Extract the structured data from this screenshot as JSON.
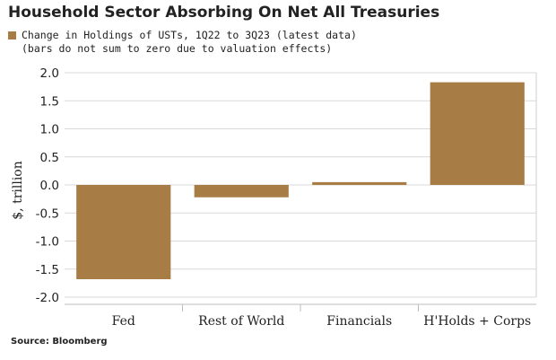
{
  "chart_data": {
    "type": "bar",
    "title": "Household Sector Absorbing On Net All Treasuries",
    "legend": {
      "series_label": "Change in Holdings of USTs, 1Q22 to 3Q23 (latest data)",
      "note": "(bars do not sum to zero due to valuation effects)"
    },
    "categories": [
      "Fed",
      "Rest of World",
      "Financials",
      "H'Holds + Corps"
    ],
    "series": [
      {
        "name": "Change in Holdings of USTs, 1Q22 to 3Q23 (latest data)",
        "values": [
          -1.68,
          -0.22,
          0.05,
          1.83
        ],
        "color": "#A87D45"
      }
    ],
    "ylabel": "$, trillion",
    "ylim": [
      -2.0,
      2.0
    ],
    "yticks": [
      2.0,
      1.5,
      1.0,
      0.5,
      0.0,
      -0.5,
      -1.0,
      -1.5,
      -2.0
    ],
    "ytick_labels": [
      "2.0",
      "1.5",
      "1.0",
      "0.5",
      "0.0",
      "-0.5",
      "-1.0",
      "-1.5",
      "-2.0"
    ],
    "grid": true,
    "legend_position": "top-left"
  },
  "source": "Source: Bloomberg"
}
